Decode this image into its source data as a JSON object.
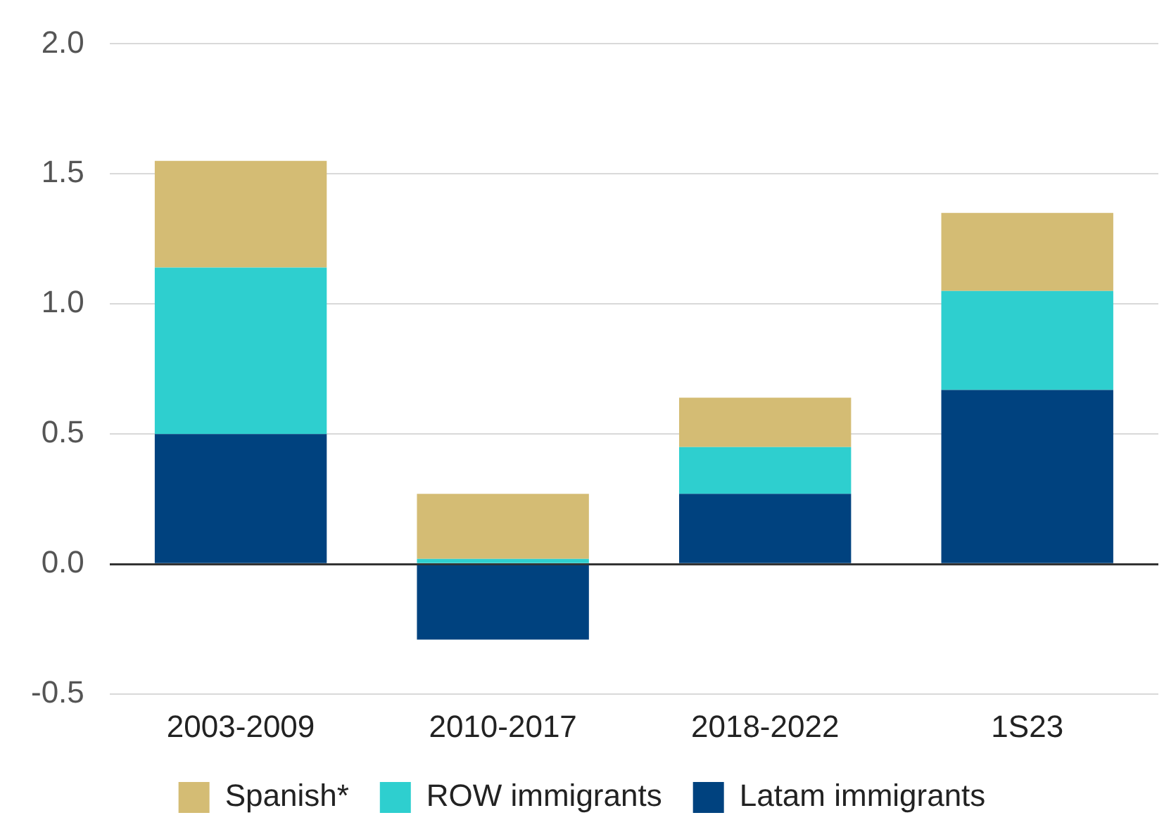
{
  "chart_data": {
    "type": "bar",
    "stacked": true,
    "categories": [
      "2003-2009",
      "2010-2017",
      "2018-2022",
      "1S23"
    ],
    "series": [
      {
        "name": "Latam immigrants",
        "color": "#00427f",
        "values": [
          0.5,
          -0.29,
          0.27,
          0.67
        ]
      },
      {
        "name": "ROW immigrants",
        "color": "#2ecfcf",
        "values": [
          0.64,
          0.02,
          0.18,
          0.38
        ]
      },
      {
        "name": "Spanish*",
        "color": "#d4bc74",
        "values": [
          0.41,
          0.25,
          0.19,
          0.3
        ]
      }
    ],
    "ylim": [
      -0.5,
      2.0
    ],
    "yticks": [
      {
        "value": -0.5,
        "label": "-0.5"
      },
      {
        "value": 0,
        "label": "0.0"
      },
      {
        "value": 0.5,
        "label": "0.5"
      },
      {
        "value": 1,
        "label": "1.0"
      },
      {
        "value": 1.5,
        "label": "1.5"
      },
      {
        "value": 2,
        "label": "2.0"
      }
    ],
    "grid": "y",
    "legend": "bottom"
  }
}
